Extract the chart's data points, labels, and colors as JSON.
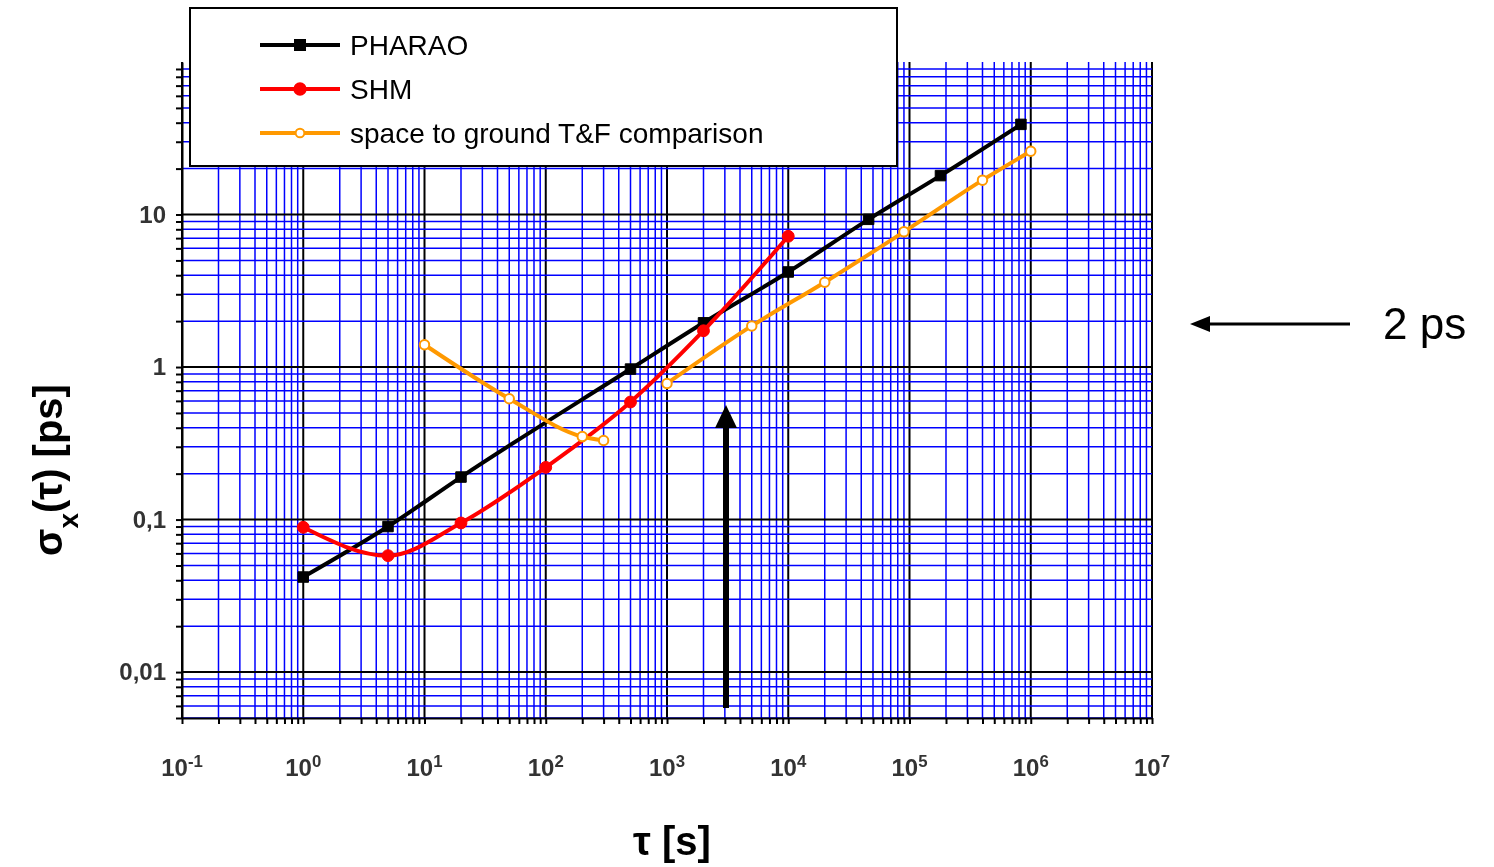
{
  "chart_data": {
    "type": "line",
    "xlabel": "τ [s]",
    "ylabel": "σ$_{x}$(τ)  [ps]",
    "log": "xy",
    "grid": true,
    "legend": "top left",
    "xlim": [
      0.1,
      10000000
    ],
    "xticks": [
      {
        "value": 0.1,
        "label": "10$^{-1}$"
      },
      {
        "value": 0.2,
        "label": null
      },
      {
        "value": 0.3,
        "label": null
      },
      {
        "value": 0.4,
        "label": null
      },
      {
        "value": 0.5,
        "label": null
      },
      {
        "value": 0.6,
        "label": null
      },
      {
        "value": 0.7,
        "label": null
      },
      {
        "value": 0.8,
        "label": null
      },
      {
        "value": 0.9,
        "label": null
      },
      {
        "value": 1,
        "label": "10$^{0}$"
      },
      {
        "value": 2,
        "label": null
      },
      {
        "value": 3,
        "label": null
      },
      {
        "value": 4,
        "label": null
      },
      {
        "value": 5,
        "label": null
      },
      {
        "value": 6,
        "label": null
      },
      {
        "value": 7,
        "label": null
      },
      {
        "value": 8,
        "label": null
      },
      {
        "value": 9,
        "label": null
      },
      {
        "value": 10,
        "label": "10$^{1}$"
      },
      {
        "value": 20,
        "label": null
      },
      {
        "value": 30,
        "label": null
      },
      {
        "value": 40,
        "label": null
      },
      {
        "value": 50,
        "label": null
      },
      {
        "value": 60,
        "label": null
      },
      {
        "value": 70,
        "label": null
      },
      {
        "value": 80,
        "label": null
      },
      {
        "value": 90,
        "label": null
      },
      {
        "value": 100,
        "label": "10$^{2}$"
      },
      {
        "value": 200,
        "label": null
      },
      {
        "value": 300,
        "label": null
      },
      {
        "value": 400,
        "label": null
      },
      {
        "value": 500,
        "label": null
      },
      {
        "value": 600,
        "label": null
      },
      {
        "value": 700,
        "label": null
      },
      {
        "value": 800,
        "label": null
      },
      {
        "value": 900,
        "label": null
      },
      {
        "value": 1000,
        "label": "10$^{3}$"
      },
      {
        "value": 2000,
        "label": null
      },
      {
        "value": 3000,
        "label": null
      },
      {
        "value": 4000,
        "label": null
      },
      {
        "value": 5000,
        "label": null
      },
      {
        "value": 6000,
        "label": null
      },
      {
        "value": 7000,
        "label": null
      },
      {
        "value": 8000,
        "label": null
      },
      {
        "value": 9000,
        "label": null
      },
      {
        "value": 10000,
        "label": "10$^{4}$"
      },
      {
        "value": 20000,
        "label": null
      },
      {
        "value": 30000,
        "label": null
      },
      {
        "value": 40000,
        "label": null
      },
      {
        "value": 50000,
        "label": null
      },
      {
        "value": 60000,
        "label": null
      },
      {
        "value": 70000,
        "label": null
      },
      {
        "value": 80000,
        "label": null
      },
      {
        "value": 90000,
        "label": null
      },
      {
        "value": 100000,
        "label": "10$^{5}$"
      },
      {
        "value": 200000,
        "label": null
      },
      {
        "value": 300000,
        "label": null
      },
      {
        "value": 400000,
        "label": null
      },
      {
        "value": 500000,
        "label": null
      },
      {
        "value": 600000,
        "label": null
      },
      {
        "value": 700000,
        "label": null
      },
      {
        "value": 800000,
        "label": null
      },
      {
        "value": 900000,
        "label": null
      },
      {
        "value": 1000000,
        "label": "10$^{6}$"
      },
      {
        "value": 2000000,
        "label": null
      },
      {
        "value": 3000000,
        "label": null
      },
      {
        "value": 4000000,
        "label": null
      },
      {
        "value": 5000000,
        "label": null
      },
      {
        "value": 6000000,
        "label": null
      },
      {
        "value": 7000000,
        "label": null
      },
      {
        "value": 8000000,
        "label": null
      },
      {
        "value": 9000000,
        "label": null
      },
      {
        "value": 10000000,
        "label": "10$^{7}$"
      }
    ],
    "ylim": [
      0.005,
      100
    ],
    "yticks": [
      {
        "value": 0.005,
        "label": null
      },
      {
        "value": 0.006,
        "label": null
      },
      {
        "value": 0.007,
        "label": null
      },
      {
        "value": 0.008,
        "label": null
      },
      {
        "value": 0.009,
        "label": null
      },
      {
        "value": 0.01,
        "label": "0,01"
      },
      {
        "value": 0.02,
        "label": null
      },
      {
        "value": 0.03,
        "label": null
      },
      {
        "value": 0.04,
        "label": null
      },
      {
        "value": 0.05,
        "label": null
      },
      {
        "value": 0.06,
        "label": null
      },
      {
        "value": 0.07,
        "label": null
      },
      {
        "value": 0.08,
        "label": null
      },
      {
        "value": 0.09,
        "label": null
      },
      {
        "value": 0.1,
        "label": "0,1"
      },
      {
        "value": 0.2,
        "label": null
      },
      {
        "value": 0.3,
        "label": null
      },
      {
        "value": 0.4,
        "label": null
      },
      {
        "value": 0.5,
        "label": null
      },
      {
        "value": 0.6,
        "label": null
      },
      {
        "value": 0.7,
        "label": null
      },
      {
        "value": 0.8,
        "label": null
      },
      {
        "value": 0.9,
        "label": null
      },
      1,
      {
        "value": 2,
        "label": null
      },
      {
        "value": 3,
        "label": null
      },
      {
        "value": 4,
        "label": null
      },
      {
        "value": 5,
        "label": null
      },
      {
        "value": 6,
        "label": null
      },
      {
        "value": 7,
        "label": null
      },
      {
        "value": 8,
        "label": null
      },
      {
        "value": 9,
        "label": null
      },
      10,
      {
        "value": 20,
        "label": null
      },
      {
        "value": 30,
        "label": null
      },
      {
        "value": 40,
        "label": null
      },
      {
        "value": 50,
        "label": null
      },
      {
        "value": 60,
        "label": null
      },
      {
        "value": 70,
        "label": null
      },
      {
        "value": 80,
        "label": null
      },
      {
        "value": 90,
        "label": null
      }
    ],
    "series": [
      {
        "name": "PHARAO",
        "color": "#000000",
        "marker": "square",
        "x": [
          1,
          5,
          20,
          500,
          2000,
          10000,
          46000,
          180000,
          830000
        ],
        "values": [
          0.042,
          0.09,
          0.19,
          0.97,
          1.95,
          4.2,
          9.3,
          18,
          39
        ]
      },
      {
        "name": "SHM",
        "color": "#ff0000",
        "marker": "circle",
        "x": [
          1,
          5,
          20,
          100,
          500,
          2000,
          10000
        ],
        "values": [
          0.089,
          0.058,
          0.095,
          0.22,
          0.59,
          1.73,
          7.2
        ]
      },
      {
        "name": "space to ground T&F comparison",
        "color": "#ff9900",
        "marker": "circle",
        "x": [
          10,
          50,
          200,
          300,
          null,
          1000,
          5000,
          20000,
          90000,
          400000,
          1000000
        ],
        "values": [
          1.4,
          0.62,
          0.35,
          0.33,
          null,
          0.78,
          1.86,
          3.6,
          7.7,
          16.8,
          26
        ]
      }
    ],
    "annotations": [
      "2 ps"
    ]
  }
}
